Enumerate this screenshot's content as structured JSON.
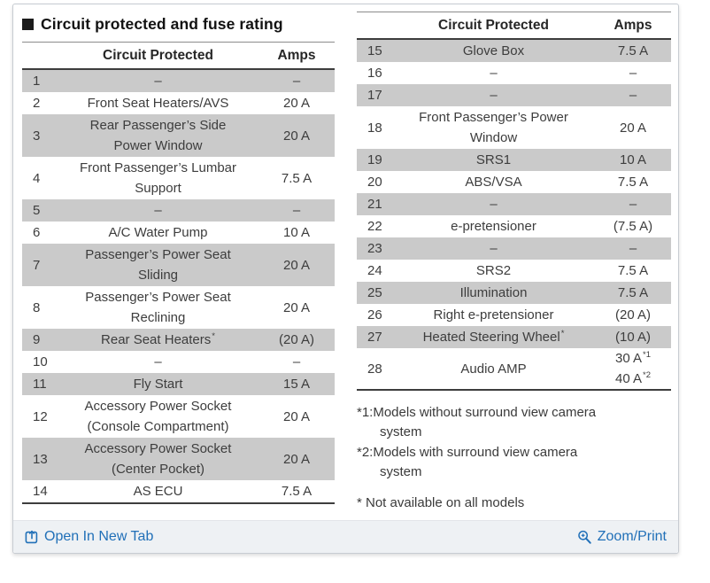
{
  "panel": {
    "title": "Circuit protected and fuse rating",
    "header": {
      "circuit": "Circuit Protected",
      "amps": "Amps"
    },
    "tables": {
      "left": {
        "rows": [
          {
            "num": "1",
            "circuit": "–",
            "amps": "–"
          },
          {
            "num": "2",
            "circuit": "Front Seat Heaters/AVS",
            "amps": "20 A"
          },
          {
            "num": "3",
            "circuit": "Rear Passenger’s Side\nPower Window",
            "amps": "20 A"
          },
          {
            "num": "4",
            "circuit": "Front Passenger’s Lumbar\nSupport",
            "amps": "7.5 A"
          },
          {
            "num": "5",
            "circuit": "–",
            "amps": "–"
          },
          {
            "num": "6",
            "circuit": "A/C Water Pump",
            "amps": "10 A"
          },
          {
            "num": "7",
            "circuit": "Passenger’s Power Seat\nSliding",
            "amps": "20 A"
          },
          {
            "num": "8",
            "circuit": "Passenger’s Power Seat\nReclining",
            "amps": "20 A"
          },
          {
            "num": "9",
            "circuit": "Rear Seat Heaters",
            "circuit_sup": "*",
            "amps": "(20 A)"
          },
          {
            "num": "10",
            "circuit": "–",
            "amps": "–"
          },
          {
            "num": "11",
            "circuit": "Fly Start",
            "amps": "15 A"
          },
          {
            "num": "12",
            "circuit": "Accessory Power Socket\n(Console Compartment)",
            "amps": "20 A"
          },
          {
            "num": "13",
            "circuit": "Accessory Power Socket\n(Center Pocket)",
            "amps": "20 A"
          },
          {
            "num": "14",
            "circuit": "AS ECU",
            "amps": "7.5 A"
          }
        ]
      },
      "right": {
        "rows": [
          {
            "num": "15",
            "circuit": "Glove Box",
            "amps": "7.5 A"
          },
          {
            "num": "16",
            "circuit": "–",
            "amps": "–"
          },
          {
            "num": "17",
            "circuit": "–",
            "amps": "–"
          },
          {
            "num": "18",
            "circuit": "Front Passenger’s Power\nWindow",
            "amps": "20 A"
          },
          {
            "num": "19",
            "circuit": "SRS1",
            "amps": "10 A"
          },
          {
            "num": "20",
            "circuit": "ABS/VSA",
            "amps": "7.5 A"
          },
          {
            "num": "21",
            "circuit": "–",
            "amps": "–"
          },
          {
            "num": "22",
            "circuit": "e-pretensioner",
            "amps": "(7.5 A)"
          },
          {
            "num": "23",
            "circuit": "–",
            "amps": "–"
          },
          {
            "num": "24",
            "circuit": "SRS2",
            "amps": "7.5 A"
          },
          {
            "num": "25",
            "circuit": "Illumination",
            "amps": "7.5 A"
          },
          {
            "num": "26",
            "circuit": "Right e-pretensioner",
            "amps": "(20 A)"
          },
          {
            "num": "27",
            "circuit": "Heated Steering Wheel",
            "circuit_sup": "*",
            "amps": "(10 A)"
          },
          {
            "num": "28",
            "circuit": "Audio AMP",
            "amps_lines": [
              {
                "t": "30 A",
                "s": "*1"
              },
              {
                "t": "40 A",
                "s": "*2"
              }
            ]
          }
        ]
      }
    },
    "footnotes": [
      "*1:Models without surround view camera\nsystem",
      "*2:Models with surround view camera\nsystem",
      "* Not available on all models"
    ],
    "footer": {
      "open_in_new_tab": "Open In New Tab",
      "zoom_print": "Zoom/Print"
    },
    "colors": {
      "link_blue": "#2170b8",
      "row_shaded_gray": "#cacaca",
      "footer_bar_bg": "#eef1f4"
    }
  }
}
